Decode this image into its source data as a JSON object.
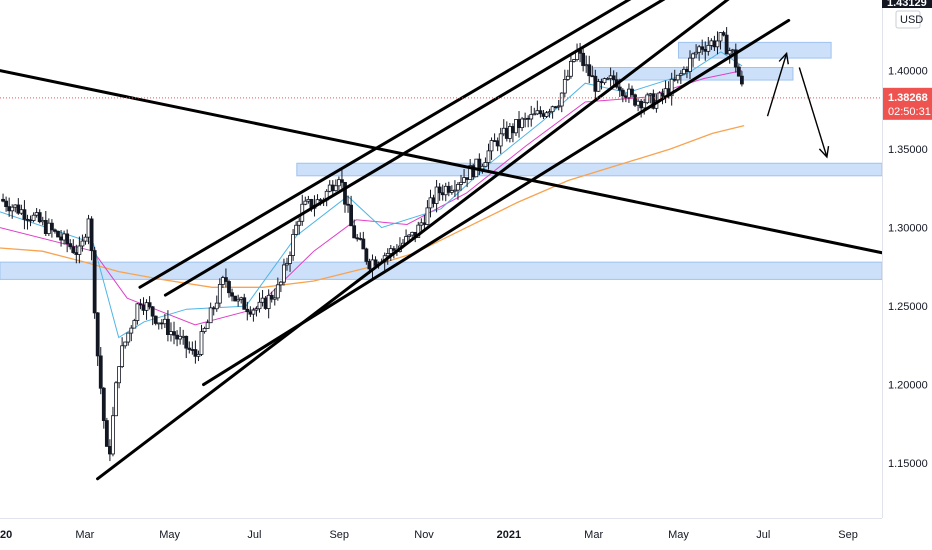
{
  "chart_data": {
    "type": "candlestick",
    "currency_label": "USD",
    "top_price_label": "1.43129",
    "last_price_label": "1.38268",
    "countdown_label": "02:50:31",
    "y_ticks": [
      1.15,
      1.2,
      1.25,
      1.3,
      1.35,
      1.4
    ],
    "y_tick_labels": [
      "1.15000",
      "1.20000",
      "1.25000",
      "1.30000",
      "1.35000",
      "1.40000"
    ],
    "ylim": [
      1.115,
      1.445
    ],
    "x_tick_labels": [
      "20",
      "Mar",
      "May",
      "Jul",
      "Sep",
      "Nov",
      "2021",
      "Mar",
      "May",
      "Jul",
      "Sep"
    ],
    "x_ticks_month_index": [
      0,
      2,
      4,
      6,
      8,
      10,
      12,
      14,
      16,
      18,
      20
    ],
    "xlim_month_index": [
      0,
      20.8
    ],
    "last_month_index": 17.55,
    "price_path": [
      [
        0,
        1.318
      ],
      [
        0.7,
        1.308
      ],
      [
        1.3,
        1.296
      ],
      [
        1.9,
        1.283
      ],
      [
        2.1,
        1.31
      ],
      [
        2.3,
        1.22
      ],
      [
        2.55,
        1.148
      ],
      [
        2.8,
        1.215
      ],
      [
        3.3,
        1.255
      ],
      [
        3.6,
        1.245
      ],
      [
        4.1,
        1.232
      ],
      [
        4.6,
        1.218
      ],
      [
        5.3,
        1.268
      ],
      [
        5.6,
        1.252
      ],
      [
        6.1,
        1.248
      ],
      [
        6.6,
        1.262
      ],
      [
        7.1,
        1.312
      ],
      [
        7.6,
        1.318
      ],
      [
        8.0,
        1.335
      ],
      [
        8.3,
        1.298
      ],
      [
        8.7,
        1.278
      ],
      [
        9.3,
        1.286
      ],
      [
        9.8,
        1.296
      ],
      [
        10.3,
        1.322
      ],
      [
        10.8,
        1.33
      ],
      [
        11.3,
        1.34
      ],
      [
        11.7,
        1.355
      ],
      [
        12.2,
        1.365
      ],
      [
        12.7,
        1.372
      ],
      [
        13.2,
        1.382
      ],
      [
        13.6,
        1.412
      ],
      [
        14.1,
        1.388
      ],
      [
        14.5,
        1.395
      ],
      [
        14.9,
        1.382
      ],
      [
        15.5,
        1.38
      ],
      [
        16.0,
        1.395
      ],
      [
        16.5,
        1.415
      ],
      [
        17.0,
        1.42
      ],
      [
        17.3,
        1.41
      ],
      [
        17.55,
        1.383
      ]
    ],
    "ema_fast_path": [
      [
        0,
        1.31
      ],
      [
        2.2,
        1.29
      ],
      [
        2.8,
        1.23
      ],
      [
        3.4,
        1.24
      ],
      [
        4.4,
        1.248
      ],
      [
        5.8,
        1.25
      ],
      [
        7.0,
        1.295
      ],
      [
        8.2,
        1.32
      ],
      [
        9.0,
        1.3
      ],
      [
        10.4,
        1.312
      ],
      [
        11.6,
        1.342
      ],
      [
        12.8,
        1.368
      ],
      [
        13.8,
        1.392
      ],
      [
        14.8,
        1.386
      ],
      [
        16.2,
        1.398
      ],
      [
        17.0,
        1.412
      ],
      [
        17.5,
        1.403
      ]
    ],
    "ema_mid_path": [
      [
        0,
        1.3
      ],
      [
        2.2,
        1.285
      ],
      [
        3.0,
        1.255
      ],
      [
        4.6,
        1.238
      ],
      [
        6.0,
        1.248
      ],
      [
        7.4,
        1.285
      ],
      [
        8.4,
        1.305
      ],
      [
        9.6,
        1.302
      ],
      [
        11.0,
        1.322
      ],
      [
        12.4,
        1.352
      ],
      [
        13.8,
        1.38
      ],
      [
        15.2,
        1.383
      ],
      [
        16.6,
        1.395
      ],
      [
        17.5,
        1.4
      ]
    ],
    "ma_slow_path": [
      [
        0,
        1.287
      ],
      [
        1.0,
        1.285
      ],
      [
        2.0,
        1.278
      ],
      [
        2.8,
        1.272
      ],
      [
        3.8,
        1.267
      ],
      [
        5.0,
        1.262
      ],
      [
        6.2,
        1.262
      ],
      [
        7.4,
        1.266
      ],
      [
        8.6,
        1.274
      ],
      [
        9.8,
        1.284
      ],
      [
        11.0,
        1.3
      ],
      [
        12.2,
        1.316
      ],
      [
        13.4,
        1.33
      ],
      [
        14.6,
        1.34
      ],
      [
        15.8,
        1.35
      ],
      [
        16.8,
        1.36
      ],
      [
        17.55,
        1.365
      ]
    ],
    "trend_lines": [
      {
        "from": [
          0,
          1.4
        ],
        "to": [
          20.8,
          1.284
        ]
      },
      {
        "from": [
          2.3,
          1.14
        ],
        "to": [
          20.8,
          1.52
        ]
      },
      {
        "from": [
          4.8,
          1.2
        ],
        "to": [
          18.6,
          1.432
        ]
      },
      {
        "from": [
          3.3,
          1.262
        ],
        "to": [
          20.8,
          1.54
        ]
      },
      {
        "from": [
          3.9,
          1.257
        ],
        "to": [
          20.8,
          1.528
        ]
      }
    ],
    "zones": [
      {
        "x": [
          7.0,
          20.8
        ],
        "y": [
          1.333,
          1.341
        ]
      },
      {
        "x": [
          0,
          20.8
        ],
        "y": [
          1.267,
          1.278
        ]
      },
      {
        "x": [
          14.0,
          18.7
        ],
        "y": [
          1.394,
          1.402
        ]
      },
      {
        "x": [
          16.0,
          19.6
        ],
        "y": [
          1.408,
          1.418
        ]
      }
    ],
    "arrows": [
      {
        "from": [
          18.1,
          1.371
        ],
        "to": [
          18.55,
          1.411
        ]
      },
      {
        "from": [
          18.85,
          1.402
        ],
        "to": [
          19.5,
          1.345
        ]
      }
    ]
  }
}
